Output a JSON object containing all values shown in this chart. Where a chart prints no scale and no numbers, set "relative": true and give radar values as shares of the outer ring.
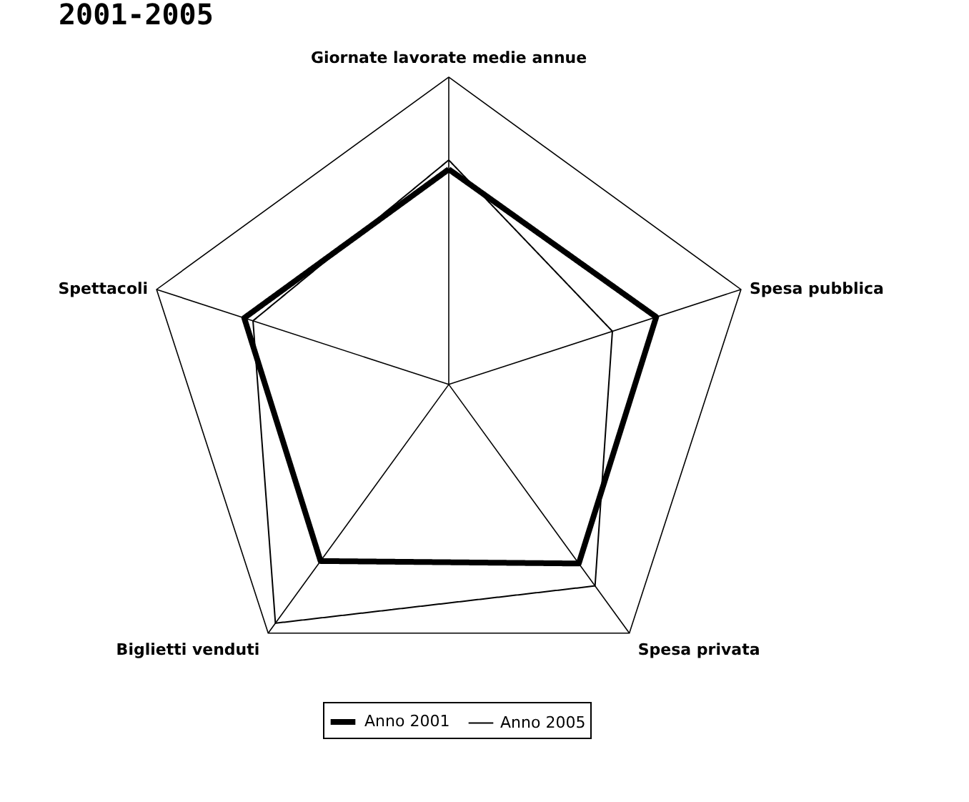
{
  "chart_data": {
    "type": "radar",
    "title": "2001-2005",
    "relative": true,
    "categories": [
      "Giornate lavorate medie annue",
      "Spesa pubblica",
      "Spesa privata",
      "Biglietti venduti",
      "Spettacoli"
    ],
    "series": [
      {
        "name": "Anno 2001",
        "color": "#000000",
        "values": [
          0.7,
          0.71,
          0.72,
          0.71,
          0.7
        ]
      },
      {
        "name": "Anno 2005",
        "color": "#000000",
        "values": [
          0.73,
          0.56,
          0.81,
          0.96,
          0.67
        ]
      }
    ],
    "legend": "bottom",
    "marker": "none",
    "line_style": "solid",
    "grid": true
  }
}
